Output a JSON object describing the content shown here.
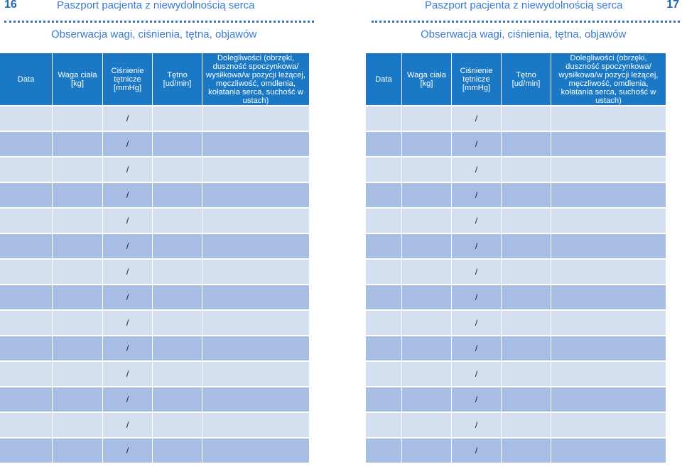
{
  "left_page": {
    "page_number": "16",
    "header_title": "Paszport pacjenta z niewydolnością serca",
    "subtitle": "Obserwacja wagi, ciśnienia, tętna, objawów"
  },
  "right_page": {
    "page_number": "17",
    "header_title": "Paszport pacjenta z niewydolnością serca",
    "subtitle": "Obserwacja wagi, ciśnienia, tętna, objawów"
  },
  "table": {
    "columns": [
      "Data",
      "Waga ciała [kg]",
      "Ciśnienie tętnicze [mmHg]",
      "Tętno [ud/min]",
      "Dolegliwości (obrzęki, duszność spoczynkowa/ wysiłkowa/w pozycji leżącej, męczliwość, omdlenia, kołatania serca, suchość w ustach)"
    ],
    "pressure_separator": "/",
    "row_count": 14
  },
  "colors": {
    "header_bg": "#1a78c4",
    "row_light": "#d3deef",
    "row_dark": "#a7bde3",
    "title_color": "#3b7bd0",
    "page_number_color": "#2366b0"
  }
}
